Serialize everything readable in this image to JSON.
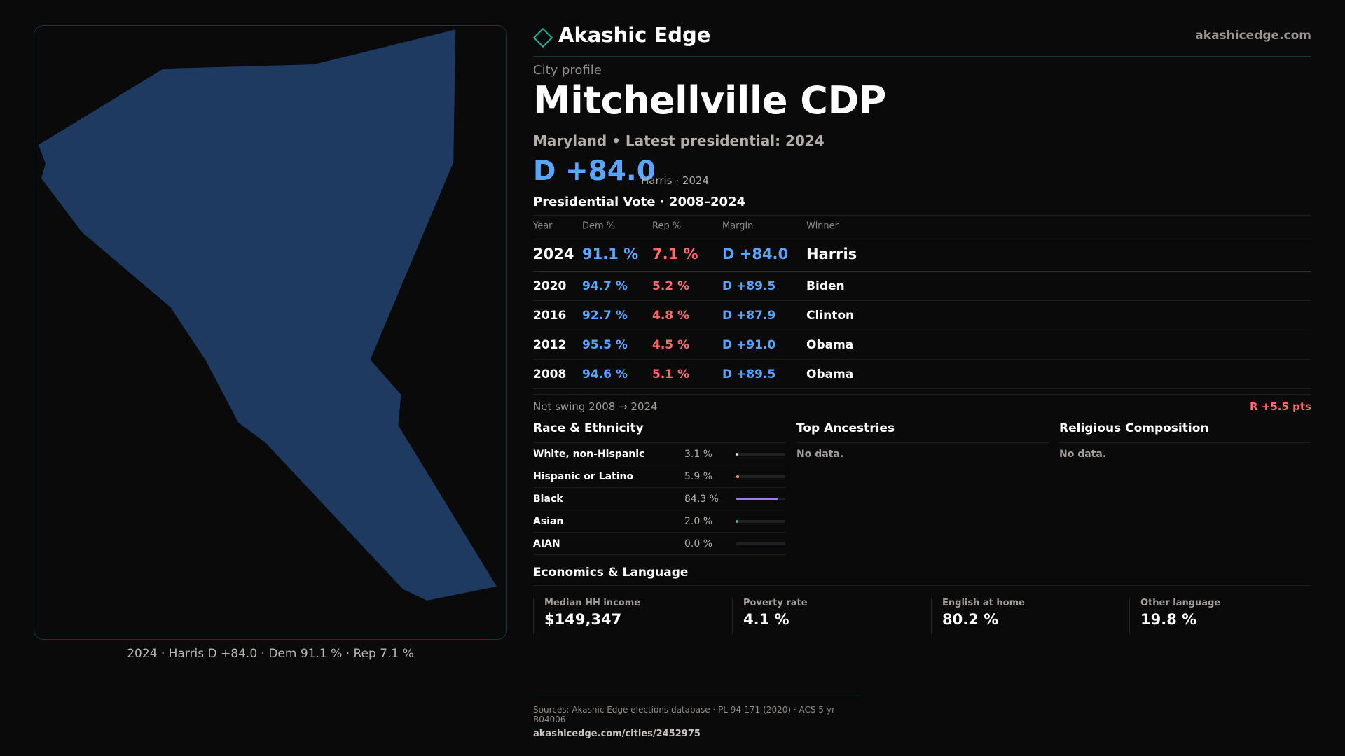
{
  "brand": {
    "name": "Akashic Edge",
    "site": "akashicedge.com"
  },
  "profile": {
    "kicker": "City profile",
    "title": "Mitchellville CDP",
    "subtitle": "Maryland • Latest presidential: 2024",
    "headline_margin": "D +84.0",
    "headline_note": "Harris · 2024"
  },
  "map": {
    "caption": "2024 · Harris D +84.0 · Dem 91.1 % · Rep 7.1 %",
    "fill_color": "#1e3a60"
  },
  "vote": {
    "title": "Presidential Vote · 2008–2024",
    "headers": {
      "year": "Year",
      "dem": "Dem %",
      "rep": "Rep %",
      "margin": "Margin",
      "winner": "Winner"
    },
    "rows": [
      {
        "year": "2024",
        "dem": "91.1 %",
        "rep": "7.1 %",
        "margin": "D +84.0",
        "winner": "Harris"
      },
      {
        "year": "2020",
        "dem": "94.7 %",
        "rep": "5.2 %",
        "margin": "D +89.5",
        "winner": "Biden"
      },
      {
        "year": "2016",
        "dem": "92.7 %",
        "rep": "4.8 %",
        "margin": "D +87.9",
        "winner": "Clinton"
      },
      {
        "year": "2012",
        "dem": "95.5 %",
        "rep": "4.5 %",
        "margin": "D +91.0",
        "winner": "Obama"
      },
      {
        "year": "2008",
        "dem": "94.6 %",
        "rep": "5.1 %",
        "margin": "D +89.5",
        "winner": "Obama"
      }
    ],
    "swing_label": "Net swing 2008 → 2024",
    "swing_value": "R +5.5 pts"
  },
  "race": {
    "title": "Race & Ethnicity",
    "rows": [
      {
        "name": "White, non-Hispanic",
        "pct": "3.1 %",
        "value": 3.1,
        "color": "#e8e8e8"
      },
      {
        "name": "Hispanic or Latino",
        "pct": "5.9 %",
        "value": 5.9,
        "color": "#f0a030"
      },
      {
        "name": "Black",
        "pct": "84.3 %",
        "value": 84.3,
        "color": "#a27df0"
      },
      {
        "name": "Asian",
        "pct": "2.0 %",
        "value": 2.0,
        "color": "#3ec9a7"
      },
      {
        "name": "AIAN",
        "pct": "0.0 %",
        "value": 0.0,
        "color": "#888888"
      }
    ]
  },
  "ancestries": {
    "title": "Top Ancestries",
    "empty": "No data."
  },
  "religion": {
    "title": "Religious Composition",
    "empty": "No data."
  },
  "economics": {
    "title": "Economics & Language",
    "items": [
      {
        "label": "Median HH income",
        "value": "$149,347"
      },
      {
        "label": "Poverty rate",
        "value": "4.1 %"
      },
      {
        "label": "English at home",
        "value": "80.2 %"
      },
      {
        "label": "Other language",
        "value": "19.8 %"
      }
    ]
  },
  "footer": {
    "sources": "Sources: Akashic Edge elections database · PL 94-171 (2020) · ACS 5-yr B04006",
    "url": "akashicedge.com/cities/2452975"
  }
}
